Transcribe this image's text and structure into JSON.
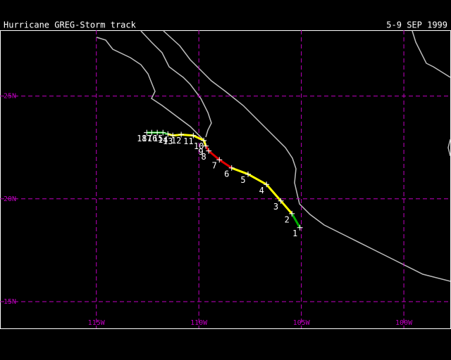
{
  "chart_data": {
    "type": "map",
    "title": "Hurricane GREG-Storm track",
    "subtitle": "5-9 SEP 1999",
    "xlim": [
      -119.7,
      -97.7
    ],
    "ylim": [
      13.7,
      28.2
    ],
    "xticks": [
      {
        "value": -115,
        "label": "115W"
      },
      {
        "value": -110,
        "label": "110W"
      },
      {
        "value": -105,
        "label": "105W"
      },
      {
        "value": -100,
        "label": "100W"
      }
    ],
    "yticks": [
      {
        "value": 25,
        "label": "25N"
      },
      {
        "value": 20,
        "label": "20N"
      },
      {
        "value": 15,
        "label": "15N"
      }
    ],
    "grid": true,
    "labels": [
      "1",
      "2",
      "3",
      "4",
      "5",
      "6",
      "7",
      "8",
      "9",
      "10",
      "11",
      "12",
      "13",
      "14",
      "15",
      "16",
      "17",
      "18"
    ],
    "x": [
      -105.07,
      -105.46,
      -106.0,
      -106.7,
      -107.6,
      -108.4,
      -109.0,
      -109.52,
      -109.66,
      -109.76,
      -110.27,
      -110.86,
      -111.27,
      -111.51,
      -111.75,
      -112.03,
      -112.3,
      -112.54
    ],
    "values": [
      18.6,
      19.28,
      19.9,
      20.7,
      21.2,
      21.5,
      21.9,
      22.33,
      22.57,
      22.84,
      23.08,
      23.12,
      23.08,
      23.15,
      23.22,
      23.22,
      23.22,
      23.22
    ],
    "segment_colors": [
      "#00b000",
      "#ffff00",
      "#ffff00",
      "#ffff00",
      "#ffff00",
      "#e00000",
      "#e00000",
      "#e00000",
      "#ffff00",
      "#ffff00",
      "#ffff00",
      "#ffff00",
      "#ffff00",
      "#00b000",
      "#00b000",
      "#00b000",
      "#00b000"
    ]
  }
}
